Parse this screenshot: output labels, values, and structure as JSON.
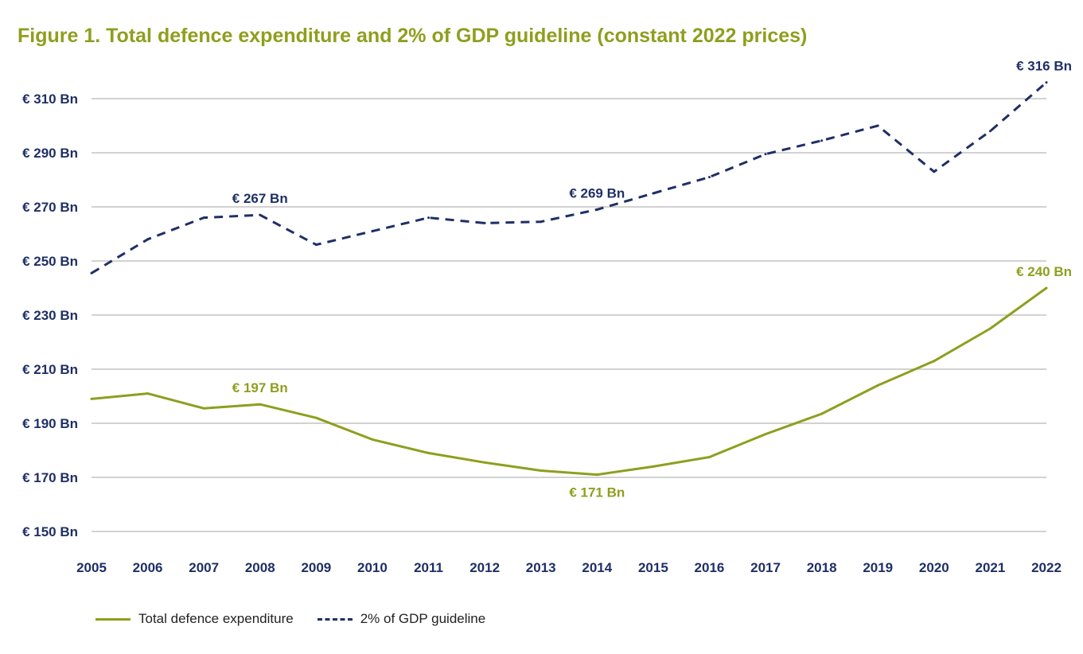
{
  "chart_data": {
    "type": "line",
    "title": "Figure 1. Total defence expenditure and 2% of GDP guideline (constant 2022 prices)",
    "xlabel": "",
    "ylabel": "",
    "x": [
      "2005",
      "2006",
      "2007",
      "2008",
      "2009",
      "2010",
      "2011",
      "2012",
      "2013",
      "2014",
      "2015",
      "2016",
      "2017",
      "2018",
      "2019",
      "2020",
      "2021",
      "2022"
    ],
    "ylim": [
      150,
      310
    ],
    "yticks": [
      150,
      170,
      190,
      210,
      230,
      250,
      270,
      290,
      310
    ],
    "ytick_labels": [
      "€ 150 Bn",
      "€ 170 Bn",
      "€ 190 Bn",
      "€ 210 Bn",
      "€ 230 Bn",
      "€ 250 Bn",
      "€ 270 Bn",
      "€ 290 Bn",
      "€ 310 Bn"
    ],
    "grid": true,
    "legend_position": "bottom-left",
    "series": [
      {
        "name": "Total defence expenditure",
        "style": "solid",
        "color": "#8e9f1e",
        "values": [
          199,
          201,
          195.5,
          197,
          192,
          184,
          179,
          175.5,
          172.5,
          171,
          174,
          177.5,
          186,
          193.5,
          204,
          213,
          225,
          240
        ]
      },
      {
        "name": "2% of GDP guideline",
        "style": "dashed",
        "color": "#1f2f66",
        "values": [
          245.5,
          258,
          266,
          267,
          256,
          261,
          266,
          264,
          264.5,
          269,
          275,
          281,
          289.5,
          294.5,
          300,
          283,
          298,
          316
        ]
      }
    ],
    "annotations": [
      {
        "series": 1,
        "x": "2008",
        "text": "€ 267 Bn"
      },
      {
        "series": 1,
        "x": "2014",
        "text": "€ 269 Bn"
      },
      {
        "series": 1,
        "x": "2022",
        "text": "€ 316 Bn"
      },
      {
        "series": 0,
        "x": "2008",
        "text": "€ 197 Bn"
      },
      {
        "series": 0,
        "x": "2014",
        "text": "€ 171 Bn"
      },
      {
        "series": 0,
        "x": "2022",
        "text": "€ 240 Bn"
      }
    ]
  }
}
